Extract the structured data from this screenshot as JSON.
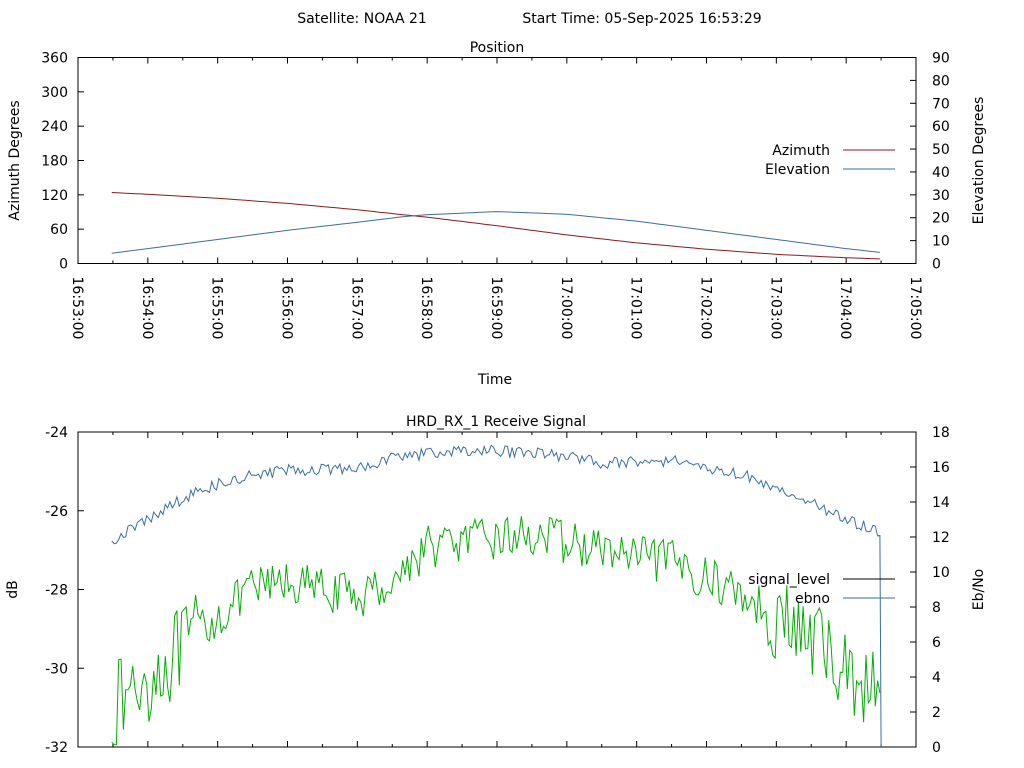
{
  "header": {
    "satellite": "Satellite: NOAA 21",
    "start_time": "Start Time: 05-Sep-2025 16:53:29"
  },
  "chart_data": [
    {
      "type": "line",
      "title": "Position",
      "xlabel": "Time",
      "ylabel": "Azimuth Degrees",
      "y2label": "Elevation Degrees",
      "x_ticks": [
        "16:53:00",
        "16:54:00",
        "16:55:00",
        "16:56:00",
        "16:57:00",
        "16:58:00",
        "16:59:00",
        "17:00:00",
        "17:01:00",
        "17:02:00",
        "17:03:00",
        "17:04:00",
        "17:05:00"
      ],
      "y_ticks": [
        "0",
        "60",
        "120",
        "180",
        "240",
        "300",
        "360"
      ],
      "y2_ticks": [
        "0",
        "10",
        "20",
        "30",
        "40",
        "50",
        "60",
        "70",
        "80",
        "90"
      ],
      "ylim": [
        0,
        360
      ],
      "y2lim": [
        0,
        90
      ],
      "xlim": [
        "16:53:00",
        "17:05:00"
      ],
      "legend_position": "right",
      "colors": {
        "Azimuth": "#8b1a1a",
        "Elevation": "#3a6ea5"
      },
      "series": [
        {
          "name": "Azimuth",
          "axis": "left",
          "x": [
            "16:53:29",
            "16:54:00",
            "16:55:00",
            "16:56:00",
            "16:57:00",
            "16:57:40",
            "16:58:00",
            "16:59:00",
            "17:00:00",
            "17:01:00",
            "17:02:00",
            "17:03:00",
            "17:04:00",
            "17:04:30"
          ],
          "values": [
            124,
            121,
            114,
            105,
            94,
            85,
            81,
            66,
            50,
            36,
            25,
            16,
            10,
            8
          ]
        },
        {
          "name": "Elevation",
          "axis": "right",
          "x": [
            "16:53:29",
            "16:54:00",
            "16:55:00",
            "16:56:00",
            "16:57:00",
            "16:57:40",
            "16:58:00",
            "16:59:00",
            "17:00:00",
            "17:01:00",
            "17:02:00",
            "17:03:00",
            "17:04:00",
            "17:04:30"
          ],
          "values": [
            4.5,
            6.5,
            10.5,
            14.5,
            18,
            20.5,
            21.3,
            22.7,
            21.5,
            18.5,
            14.5,
            10.5,
            6.5,
            4.8
          ]
        }
      ]
    },
    {
      "type": "line",
      "title": "HRD_RX_1 Receive Signal",
      "ylabel": "dB",
      "y2label": "Eb/No",
      "y_ticks": [
        "-32",
        "-30",
        "-28",
        "-26",
        "-24"
      ],
      "y2_ticks": [
        "0",
        "2",
        "4",
        "6",
        "8",
        "10",
        "12",
        "14",
        "16",
        "18"
      ],
      "ylim": [
        -32,
        -24
      ],
      "y2lim": [
        0,
        18
      ],
      "xlim": [
        "16:53:00",
        "17:05:00"
      ],
      "legend_position": "right",
      "colors": {
        "signal_level": "#00b000",
        "ebno": "#3a6ea5"
      },
      "series": [
        {
          "name": "signal_level",
          "axis": "left",
          "x": [
            "16:53:29",
            "16:54:00",
            "16:54:30",
            "16:55:00",
            "16:55:30",
            "16:56:00",
            "16:56:30",
            "16:57:00",
            "16:57:30",
            "16:58:00",
            "16:58:30",
            "16:59:00",
            "16:59:30",
            "17:00:00",
            "17:00:30",
            "17:01:00",
            "17:01:30",
            "17:02:00",
            "17:02:30",
            "17:03:00",
            "17:03:30",
            "17:04:00",
            "17:04:30"
          ],
          "values": [
            -31.0,
            -30.3,
            -29.5,
            -28.7,
            -28.0,
            -27.8,
            -28.0,
            -28.2,
            -27.8,
            -26.9,
            -26.8,
            -26.7,
            -26.6,
            -26.8,
            -27.0,
            -27.2,
            -27.3,
            -27.7,
            -28.1,
            -28.7,
            -29.3,
            -30.0,
            -30.8
          ]
        },
        {
          "name": "ebno",
          "axis": "right",
          "x": [
            "16:53:29",
            "16:54:00",
            "16:54:30",
            "16:55:00",
            "16:55:30",
            "16:56:00",
            "16:56:30",
            "16:57:00",
            "16:57:30",
            "16:58:00",
            "16:58:30",
            "16:59:00",
            "16:59:30",
            "17:00:00",
            "17:00:30",
            "17:01:00",
            "17:01:30",
            "17:02:00",
            "17:02:30",
            "17:03:00",
            "17:03:30",
            "17:04:00",
            "17:04:30"
          ],
          "values": [
            11.8,
            13.0,
            14.2,
            15.0,
            15.5,
            15.8,
            15.9,
            16.0,
            16.5,
            16.8,
            16.9,
            16.9,
            16.8,
            16.6,
            16.2,
            16.3,
            16.4,
            16.0,
            15.6,
            14.8,
            14.0,
            13.0,
            12.2
          ]
        }
      ]
    }
  ]
}
